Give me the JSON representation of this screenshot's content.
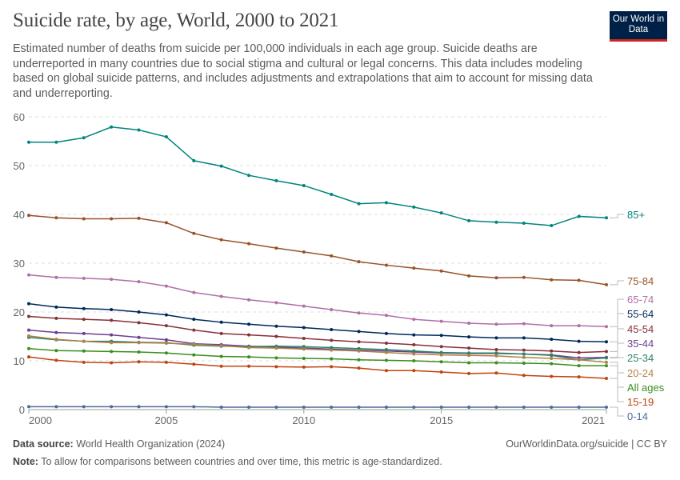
{
  "header": {
    "title": "Suicide rate, by age, World, 2000 to 2021",
    "subtitle": "Estimated number of deaths from suicide per 100,000 individuals in each age group. Suicide deaths are underreported in many countries due to social stigma and cultural or legal concerns. This data includes modeling based on global suicide patterns, and includes adjustments and extrapolations that aim to account for missing data and underreporting.",
    "logo": "Our World in Data"
  },
  "footer": {
    "source_label": "Data source:",
    "source": "World Health Organization (2024)",
    "url": "OurWorldinData.org/suicide | CC BY",
    "note_label": "Note:",
    "note": "To allow for comparisons between countries and over time, this metric is age-standardized."
  },
  "chart_data": {
    "type": "line",
    "x": [
      2000,
      2001,
      2002,
      2003,
      2004,
      2005,
      2006,
      2007,
      2008,
      2009,
      2010,
      2011,
      2012,
      2013,
      2014,
      2015,
      2016,
      2017,
      2018,
      2019,
      2020,
      2021
    ],
    "xticks": [
      2000,
      2005,
      2010,
      2015,
      2021
    ],
    "yticks": [
      0,
      10,
      20,
      30,
      40,
      50,
      60
    ],
    "ylim": [
      0,
      60
    ],
    "xlim": [
      2000,
      2021
    ],
    "grid": "horizontal dashed",
    "legend": "right, end labels",
    "series": [
      {
        "name": "85+",
        "color": "#00847e",
        "values": [
          54.8,
          54.8,
          55.7,
          57.9,
          57.3,
          55.9,
          51.0,
          49.9,
          48.0,
          46.9,
          45.9,
          44.1,
          42.2,
          42.4,
          41.5,
          40.3,
          38.7,
          38.4,
          38.2,
          37.7,
          39.6,
          39.3
        ]
      },
      {
        "name": "75-84",
        "color": "#9a5129",
        "values": [
          39.8,
          39.3,
          39.1,
          39.1,
          39.2,
          38.3,
          36.1,
          34.8,
          34.0,
          33.1,
          32.3,
          31.5,
          30.3,
          29.6,
          29.0,
          28.4,
          27.4,
          27.0,
          27.1,
          26.6,
          26.5,
          25.6
        ]
      },
      {
        "name": "65-74",
        "color": "#b16ea8",
        "values": [
          27.6,
          27.1,
          26.9,
          26.7,
          26.2,
          25.3,
          24.0,
          23.2,
          22.5,
          21.9,
          21.2,
          20.5,
          19.8,
          19.3,
          18.5,
          18.1,
          17.7,
          17.5,
          17.6,
          17.2,
          17.2,
          17.0
        ]
      },
      {
        "name": "55-64",
        "color": "#00295b",
        "values": [
          21.7,
          21.0,
          20.7,
          20.5,
          20.0,
          19.4,
          18.5,
          17.9,
          17.5,
          17.1,
          16.8,
          16.4,
          16.0,
          15.6,
          15.3,
          15.2,
          14.9,
          14.7,
          14.7,
          14.4,
          14.0,
          13.9
        ]
      },
      {
        "name": "45-54",
        "color": "#883039",
        "values": [
          19.1,
          18.7,
          18.5,
          18.3,
          17.8,
          17.2,
          16.3,
          15.6,
          15.3,
          15.0,
          14.6,
          14.2,
          13.9,
          13.6,
          13.3,
          12.9,
          12.6,
          12.3,
          12.2,
          12.0,
          11.7,
          11.9
        ]
      },
      {
        "name": "35-44",
        "color": "#6d3e91",
        "values": [
          16.3,
          15.8,
          15.6,
          15.3,
          14.8,
          14.3,
          13.5,
          13.3,
          13.0,
          12.8,
          12.6,
          12.4,
          12.2,
          12.0,
          11.8,
          11.6,
          11.5,
          11.5,
          11.4,
          11.2,
          10.6,
          10.7
        ]
      },
      {
        "name": "25-34",
        "color": "#2c8465",
        "values": [
          14.8,
          14.3,
          14.0,
          14.0,
          13.8,
          13.7,
          13.2,
          13.0,
          12.9,
          13.0,
          12.9,
          12.7,
          12.5,
          12.3,
          12.0,
          11.7,
          11.6,
          11.6,
          11.4,
          11.1,
          10.2,
          10.6
        ]
      },
      {
        "name": "20-24",
        "color": "#b28145",
        "values": [
          15.1,
          14.4,
          14.0,
          13.7,
          13.7,
          13.6,
          13.4,
          13.1,
          12.7,
          12.6,
          12.4,
          12.2,
          12.0,
          11.7,
          11.4,
          11.2,
          11.1,
          11.0,
          10.7,
          10.5,
          10.2,
          9.7
        ]
      },
      {
        "name": "All ages",
        "color": "#3a8e1e",
        "values": [
          12.5,
          12.1,
          12.0,
          11.9,
          11.8,
          11.6,
          11.2,
          10.9,
          10.8,
          10.6,
          10.5,
          10.4,
          10.2,
          10.1,
          10.0,
          9.8,
          9.6,
          9.6,
          9.5,
          9.4,
          9.0,
          9.0
        ]
      },
      {
        "name": "15-19",
        "color": "#c0440f",
        "values": [
          10.8,
          10.1,
          9.7,
          9.6,
          9.8,
          9.7,
          9.3,
          8.9,
          8.9,
          8.8,
          8.7,
          8.8,
          8.5,
          8.0,
          8.0,
          7.7,
          7.4,
          7.5,
          7.0,
          6.8,
          6.7,
          6.4
        ]
      },
      {
        "name": "0-14",
        "color": "#4c6a9c",
        "values": [
          0.6,
          0.6,
          0.6,
          0.6,
          0.6,
          0.6,
          0.6,
          0.5,
          0.5,
          0.5,
          0.5,
          0.5,
          0.5,
          0.5,
          0.5,
          0.5,
          0.5,
          0.5,
          0.5,
          0.5,
          0.5,
          0.5
        ]
      }
    ]
  }
}
